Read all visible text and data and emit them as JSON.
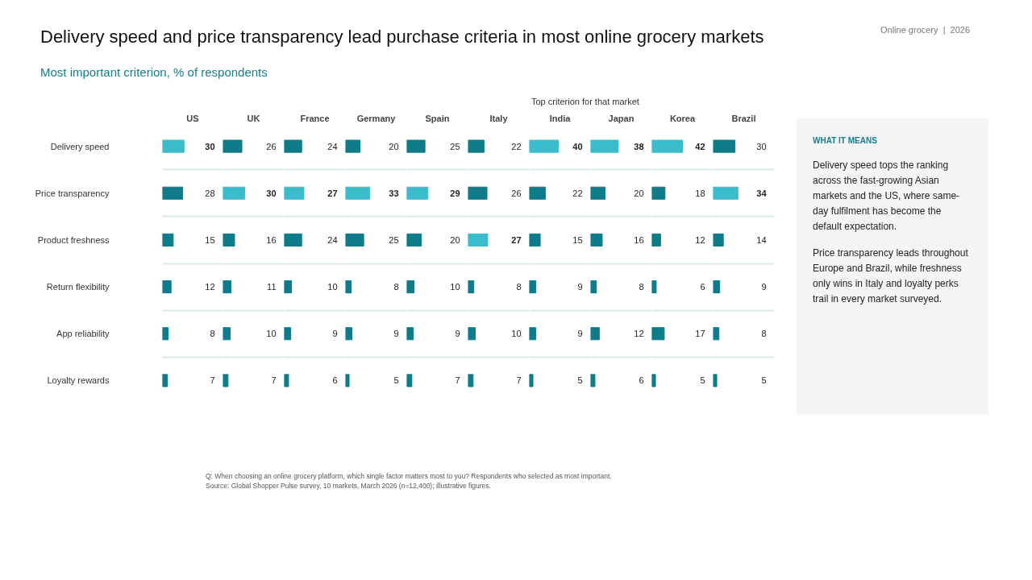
{
  "chart_data": [
    {
      "type": "bar",
      "orientation": "horizontal",
      "title": "Delivery speed and price transparency lead purchase criteria in most online grocery markets",
      "subtitle": "Most important criterion, % of respondents",
      "xlabel": "US",
      "categories": [
        "Delivery speed",
        "Price transparency",
        "Product freshness",
        "Return flexibility",
        "App reliability",
        "Loyalty rewards"
      ],
      "series": [
        {
          "color": "#0e7c8a",
          "values": [
            null,
            28,
            15,
            12,
            8,
            7
          ]
        },
        {
          "name": "Top criterion for that market",
          "color": "#3bbccc",
          "values": [
            30,
            null,
            null,
            null,
            null,
            null
          ]
        }
      ],
      "xlim": [
        0,
        84
      ],
      "data_labels": true,
      "grid": "y",
      "legend": "top",
      "tick_labels": "y",
      "annotations": [
        "Online grocery  |  2026",
        "Q: When choosing an online grocery platform, which single factor matters most to you? Respondents who selected as most important.",
        "Source: Global Shopper Pulse survey, 10 markets, March 2026 (n=12,400); illustrative figures."
      ]
    },
    {
      "type": "bar",
      "orientation": "horizontal",
      "xlabel": "UK",
      "series": [
        {
          "color": "#0e7c8a",
          "values": [
            26,
            null,
            16,
            11,
            10,
            7
          ]
        },
        {
          "color": "#3bbccc",
          "values": [
            null,
            30,
            null,
            null,
            null,
            null
          ]
        }
      ],
      "xlim": [
        0,
        84
      ],
      "data_labels": true,
      "grid": "y",
      "tick_labels": false
    },
    {
      "type": "bar",
      "orientation": "horizontal",
      "xlabel": "France",
      "series": [
        {
          "color": "#0e7c8a",
          "values": [
            24,
            null,
            24,
            10,
            9,
            6
          ]
        },
        {
          "color": "#3bbccc",
          "values": [
            null,
            27,
            null,
            null,
            null,
            null
          ]
        }
      ],
      "xlim": [
        0,
        84
      ],
      "data_labels": true,
      "grid": "y",
      "tick_labels": false
    },
    {
      "type": "bar",
      "orientation": "horizontal",
      "xlabel": "Germany",
      "series": [
        {
          "color": "#0e7c8a",
          "values": [
            20,
            null,
            25,
            8,
            9,
            5
          ]
        },
        {
          "color": "#3bbccc",
          "values": [
            null,
            33,
            null,
            null,
            null,
            null
          ]
        }
      ],
      "xlim": [
        0,
        84
      ],
      "data_labels": true,
      "grid": "y",
      "tick_labels": false
    },
    {
      "type": "bar",
      "orientation": "horizontal",
      "xlabel": "Spain",
      "series": [
        {
          "color": "#0e7c8a",
          "values": [
            25,
            null,
            20,
            10,
            9,
            7
          ]
        },
        {
          "color": "#3bbccc",
          "values": [
            null,
            29,
            null,
            null,
            null,
            null
          ]
        }
      ],
      "xlim": [
        0,
        84
      ],
      "data_labels": true,
      "grid": "y",
      "tick_labels": false
    },
    {
      "type": "bar",
      "orientation": "horizontal",
      "xlabel": "Italy",
      "series": [
        {
          "color": "#0e7c8a",
          "values": [
            22,
            26,
            null,
            8,
            10,
            7
          ]
        },
        {
          "color": "#3bbccc",
          "values": [
            null,
            null,
            27,
            null,
            null,
            null
          ]
        }
      ],
      "xlim": [
        0,
        84
      ],
      "data_labels": true,
      "grid": "y",
      "tick_labels": false
    },
    {
      "type": "bar",
      "orientation": "horizontal",
      "xlabel": "India",
      "series": [
        {
          "color": "#0e7c8a",
          "values": [
            null,
            22,
            15,
            9,
            9,
            5
          ]
        },
        {
          "color": "#3bbccc",
          "values": [
            40,
            null,
            null,
            null,
            null,
            null
          ]
        }
      ],
      "xlim": [
        0,
        84
      ],
      "data_labels": true,
      "grid": "y",
      "tick_labels": false
    },
    {
      "type": "bar",
      "orientation": "horizontal",
      "xlabel": "Japan",
      "series": [
        {
          "color": "#0e7c8a",
          "values": [
            null,
            20,
            16,
            8,
            12,
            6
          ]
        },
        {
          "color": "#3bbccc",
          "values": [
            38,
            null,
            null,
            null,
            null,
            null
          ]
        }
      ],
      "xlim": [
        0,
        84
      ],
      "data_labels": true,
      "grid": "y",
      "tick_labels": false
    },
    {
      "type": "bar",
      "orientation": "horizontal",
      "xlabel": "Korea",
      "series": [
        {
          "color": "#0e7c8a",
          "values": [
            null,
            18,
            12,
            6,
            17,
            5
          ]
        },
        {
          "color": "#3bbccc",
          "values": [
            42,
            null,
            null,
            null,
            null,
            null
          ]
        }
      ],
      "xlim": [
        0,
        84
      ],
      "data_labels": true,
      "grid": "y",
      "tick_labels": false
    },
    {
      "type": "bar",
      "orientation": "horizontal",
      "xlabel": "Brazil",
      "series": [
        {
          "color": "#0e7c8a",
          "values": [
            30,
            null,
            14,
            9,
            8,
            5
          ]
        },
        {
          "color": "#3bbccc",
          "values": [
            null,
            34,
            null,
            null,
            null,
            null
          ]
        }
      ],
      "xlim": [
        0,
        84
      ],
      "data_labels": true,
      "grid": "y",
      "tick_labels": false
    },
    {
      "type": "other",
      "title": "WHAT IT MEANS",
      "annotations": [
        "Delivery speed tops the ranking across the fast-growing Asian markets and the US, where same-day fulfilment has become the default expectation.",
        "Price transparency leads throughout Europe and Brazil, while freshness only wins in Italy and loyalty perks trail in every market surveyed."
      ]
    }
  ]
}
